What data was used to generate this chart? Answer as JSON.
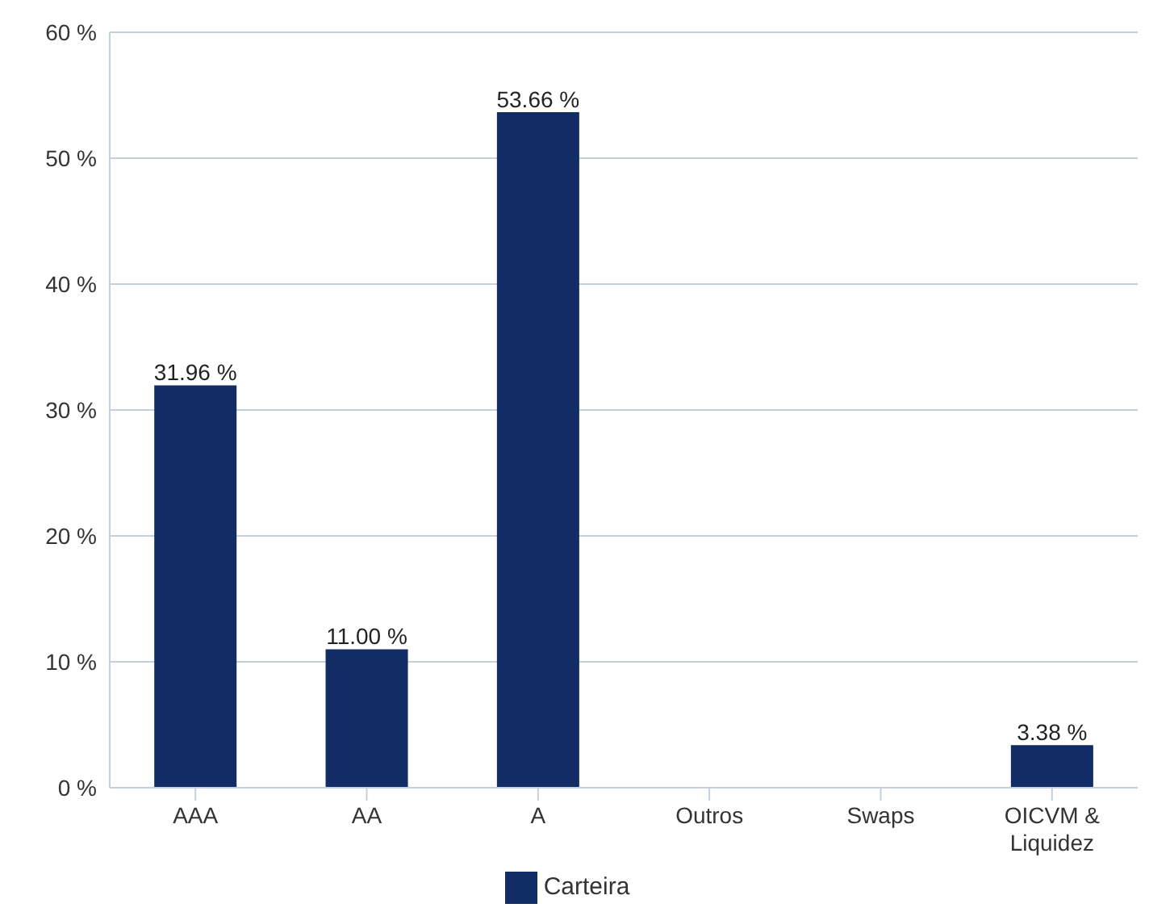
{
  "chart_data": {
    "type": "bar",
    "categories": [
      "AAA",
      "AA",
      "A",
      "Outros",
      "Swaps",
      "OICVM & Liquidez"
    ],
    "series": [
      {
        "name": "Carteira",
        "color": "#122c66",
        "values": [
          31.96,
          11.0,
          53.66,
          null,
          null,
          3.38
        ],
        "value_labels": [
          "31.96 %",
          "11.00 %",
          "53.66 %",
          null,
          null,
          "3.38 %"
        ]
      }
    ],
    "ylim": [
      0,
      60
    ],
    "yticks": [
      {
        "value": 0,
        "label": "0 %"
      },
      {
        "value": 10,
        "label": "10 %"
      },
      {
        "value": 20,
        "label": "20 %"
      },
      {
        "value": 30,
        "label": "30 %"
      },
      {
        "value": 40,
        "label": "40 %"
      },
      {
        "value": 50,
        "label": "50 %"
      },
      {
        "value": 60,
        "label": "60 %"
      }
    ],
    "grid": "y",
    "legend": "bottom"
  }
}
